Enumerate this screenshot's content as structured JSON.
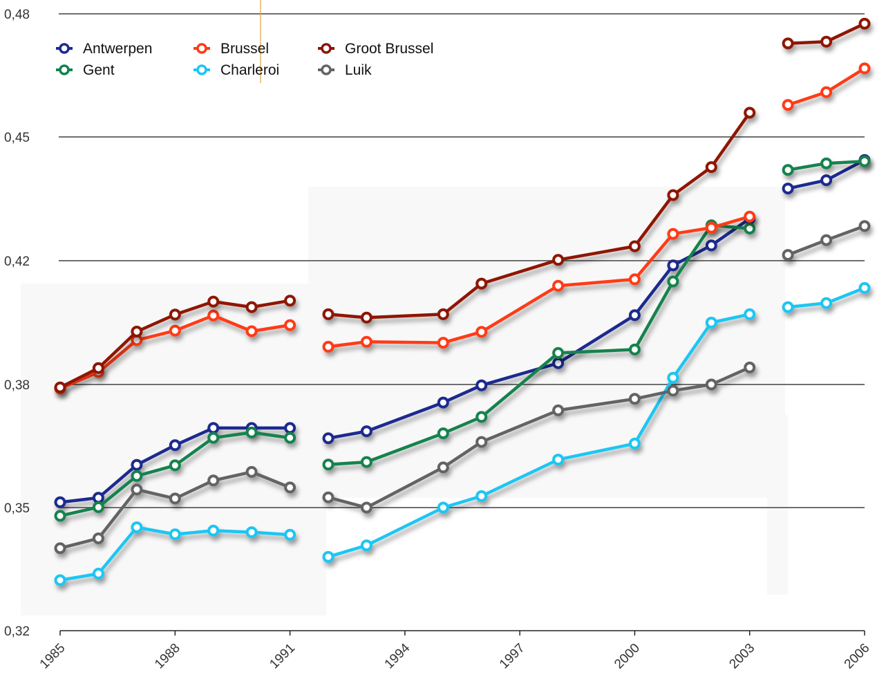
{
  "chart_data": {
    "type": "line",
    "title": "",
    "xlabel": "",
    "ylabel": "",
    "ylim": [
      0.32,
      0.48
    ],
    "xlim": [
      1985,
      2006
    ],
    "y_ticks": [
      "0,32",
      "0,35",
      "0,38",
      "0,42",
      "0,45",
      "0,48"
    ],
    "y_tick_values": [
      0.32,
      0.35,
      0.38,
      0.42,
      0.45,
      0.48
    ],
    "x_ticks": [
      "1985",
      "1988",
      "1991",
      "1994",
      "1997",
      "2000",
      "2003",
      "2006"
    ],
    "x_tick_values": [
      1985,
      1988,
      1991,
      1994,
      1997,
      2000,
      2003,
      2006
    ],
    "grid": true,
    "legend_position": "top-left",
    "x": [
      1985,
      1986,
      1987,
      1988,
      1989,
      1990,
      1991,
      1992,
      1993,
      1995,
      1996,
      1998,
      2000,
      2001,
      2002,
      2003,
      2004,
      2005,
      2006
    ],
    "series": [
      {
        "name": "Antwerpen",
        "color": "#1c2a8f",
        "values": [
          0.3513,
          0.3524,
          0.3604,
          0.3652,
          0.3694,
          0.3694,
          0.3694,
          0.3669,
          0.3686,
          0.3756,
          0.3798,
          0.3869,
          0.4024,
          0.4185,
          0.4237,
          0.4302,
          0.4375,
          0.4395,
          0.4444
        ]
      },
      {
        "name": "Gent",
        "color": "#13824e",
        "values": [
          0.348,
          0.3501,
          0.3577,
          0.3603,
          0.367,
          0.3683,
          0.367,
          0.3605,
          0.3611,
          0.3681,
          0.3721,
          0.3902,
          0.3913,
          0.4133,
          0.4286,
          0.4278,
          0.442,
          0.4436,
          0.4441
        ]
      },
      {
        "name": "Brussel",
        "color": "#ff3b14",
        "values": [
          0.379,
          0.384,
          0.3943,
          0.3974,
          0.4023,
          0.3972,
          0.3992,
          0.3922,
          0.3938,
          0.3935,
          0.397,
          0.4119,
          0.414,
          0.4265,
          0.428,
          0.4307,
          0.4578,
          0.4609,
          0.4667
        ]
      },
      {
        "name": "Charleroi",
        "color": "#1cc6f2",
        "values": [
          0.3323,
          0.3339,
          0.3452,
          0.3435,
          0.3444,
          0.344,
          0.3434,
          0.338,
          0.3408,
          0.35,
          0.3528,
          0.3617,
          0.3656,
          0.3822,
          0.4,
          0.4027,
          0.405,
          0.4063,
          0.4112
        ]
      },
      {
        "name": "Groot Brussel",
        "color": "#8e1406",
        "values": [
          0.3793,
          0.3853,
          0.3971,
          0.4026,
          0.4068,
          0.405,
          0.4071,
          0.4027,
          0.4016,
          0.4027,
          0.4126,
          0.4202,
          0.4235,
          0.4359,
          0.4427,
          0.4559,
          0.4728,
          0.4732,
          0.4776
        ]
      },
      {
        "name": "Luik",
        "color": "#646464",
        "values": [
          0.3401,
          0.3425,
          0.3544,
          0.3522,
          0.3566,
          0.3587,
          0.3549,
          0.3525,
          0.35,
          0.3598,
          0.366,
          0.3737,
          0.3765,
          0.3785,
          0.38,
          0.3855,
          0.4214,
          0.425,
          0.4284
        ]
      }
    ]
  }
}
